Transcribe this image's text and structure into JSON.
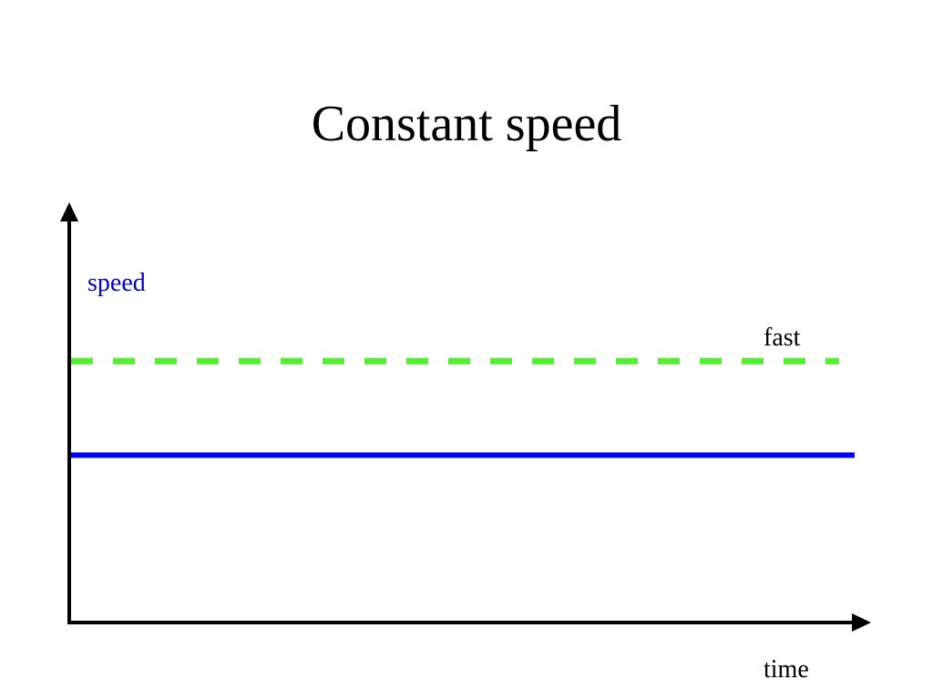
{
  "title": "Constant speed",
  "colors": {
    "fast_line": "#55ee33",
    "speed_line": "#0000ee",
    "speed_label": "#0000cc",
    "axis": "#000000"
  },
  "chart_data": {
    "type": "line",
    "title": "Constant speed",
    "xlabel": "time",
    "ylabel": "speed",
    "xlim": [
      0,
      1
    ],
    "ylim": [
      0,
      1
    ],
    "grid": false,
    "series": [
      {
        "name": "fast",
        "style": "dashed",
        "color": "#55ee33",
        "x": [
          0,
          0.98
        ],
        "y": [
          0.64,
          0.64
        ]
      },
      {
        "name": "",
        "style": "solid",
        "color": "#0000ee",
        "x": [
          0,
          1
        ],
        "y": [
          0.41,
          0.41
        ]
      }
    ]
  }
}
